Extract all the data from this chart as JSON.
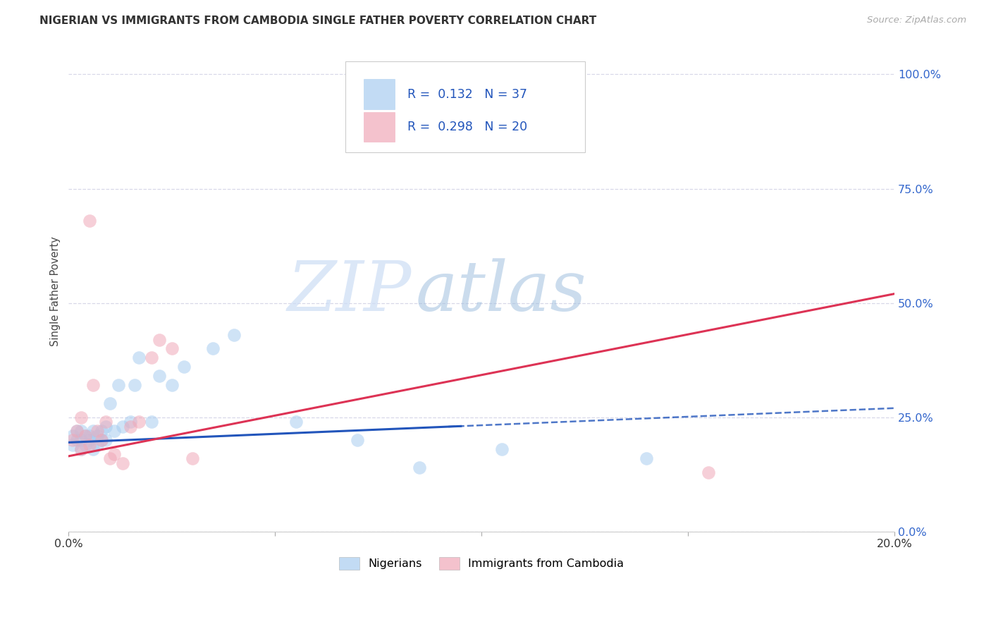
{
  "title": "NIGERIAN VS IMMIGRANTS FROM CAMBODIA SINGLE FATHER POVERTY CORRELATION CHART",
  "source": "Source: ZipAtlas.com",
  "ylabel": "Single Father Poverty",
  "xlim": [
    0.0,
    0.2
  ],
  "ylim": [
    0.0,
    1.05
  ],
  "yticks": [
    0.0,
    0.25,
    0.5,
    0.75,
    1.0
  ],
  "ytick_labels": [
    "0.0%",
    "25.0%",
    "50.0%",
    "75.0%",
    "100.0%"
  ],
  "xticks": [
    0.0,
    0.05,
    0.1,
    0.15,
    0.2
  ],
  "xtick_labels": [
    "0.0%",
    "",
    "",
    "",
    "20.0%"
  ],
  "background_color": "#ffffff",
  "grid_color": "#d8d8e8",
  "watermark_zip": "ZIP",
  "watermark_atlas": "atlas",
  "legend_labels": [
    "Nigerians",
    "Immigrants from Cambodia"
  ],
  "blue_color": "#a8ccf0",
  "pink_color": "#f0a8b8",
  "blue_line_color": "#2255bb",
  "pink_line_color": "#dd3355",
  "R_blue": "0.132",
  "N_blue": "37",
  "R_pink": "0.298",
  "N_pink": "20",
  "legend_text_color": "#2255bb",
  "nigerians_x": [
    0.001,
    0.001,
    0.002,
    0.002,
    0.003,
    0.003,
    0.003,
    0.004,
    0.004,
    0.005,
    0.005,
    0.006,
    0.006,
    0.007,
    0.007,
    0.008,
    0.008,
    0.009,
    0.009,
    0.01,
    0.011,
    0.012,
    0.013,
    0.015,
    0.016,
    0.017,
    0.02,
    0.022,
    0.025,
    0.028,
    0.035,
    0.04,
    0.055,
    0.07,
    0.085,
    0.105,
    0.14
  ],
  "nigerians_y": [
    0.19,
    0.21,
    0.2,
    0.22,
    0.18,
    0.2,
    0.22,
    0.19,
    0.21,
    0.2,
    0.21,
    0.18,
    0.22,
    0.19,
    0.21,
    0.2,
    0.22,
    0.2,
    0.23,
    0.28,
    0.22,
    0.32,
    0.23,
    0.24,
    0.32,
    0.38,
    0.24,
    0.34,
    0.32,
    0.36,
    0.4,
    0.43,
    0.24,
    0.2,
    0.14,
    0.18,
    0.16
  ],
  "cambodia_x": [
    0.001,
    0.002,
    0.003,
    0.003,
    0.004,
    0.005,
    0.006,
    0.007,
    0.008,
    0.009,
    0.01,
    0.011,
    0.013,
    0.015,
    0.017,
    0.02,
    0.022,
    0.025,
    0.03,
    0.155
  ],
  "cambodia_y": [
    0.2,
    0.22,
    0.18,
    0.25,
    0.21,
    0.19,
    0.32,
    0.22,
    0.2,
    0.24,
    0.16,
    0.17,
    0.15,
    0.23,
    0.24,
    0.38,
    0.42,
    0.4,
    0.16,
    0.13
  ],
  "cambodia_outlier_x": [
    0.005
  ],
  "cambodia_outlier_y": [
    0.68
  ]
}
